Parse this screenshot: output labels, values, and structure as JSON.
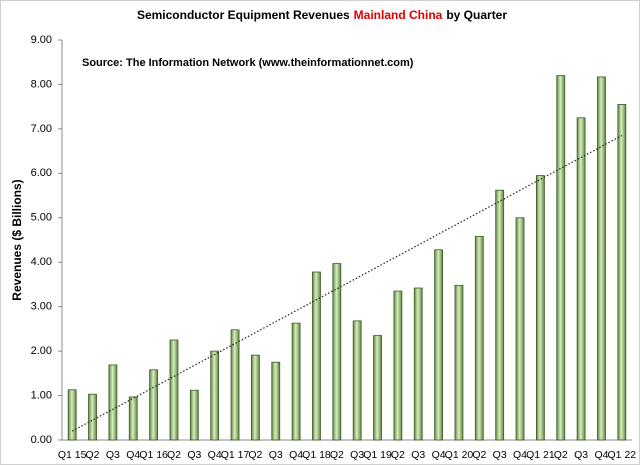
{
  "chart_data": {
    "type": "bar",
    "title_parts": [
      {
        "text": "Semiconductor Equipment Revenues",
        "color": "#000000"
      },
      {
        "text": "Mainland China",
        "color": "#e00000"
      },
      {
        "text": "by Quarter",
        "color": "#000000"
      }
    ],
    "annotation": "Source: The Information Network (www.theinformationnet.com)",
    "y_label": "Revenues ($ Billions)",
    "categories": [
      "Q1 15",
      "Q2",
      "Q3",
      "Q4",
      "Q1 16",
      "Q2",
      "Q3",
      "Q4",
      "Q1 17",
      "Q2",
      "Q3",
      "Q4",
      "Q1 18",
      "Q2",
      "Q3",
      "Q1 19",
      "Q2",
      "Q3",
      "Q4",
      "Q1 20",
      "Q2",
      "Q3",
      "Q4",
      "Q1 21",
      "Q2",
      "Q3",
      "Q4",
      "Q1 22"
    ],
    "values": [
      1.13,
      1.03,
      1.69,
      0.97,
      1.58,
      2.25,
      1.12,
      2.0,
      2.48,
      1.91,
      1.75,
      2.63,
      3.78,
      3.97,
      2.68,
      2.35,
      3.35,
      3.42,
      4.28,
      3.48,
      4.58,
      5.62,
      5.0,
      5.95,
      8.2,
      7.25,
      8.17,
      7.55
    ],
    "color": "#9cbf7a",
    "ylim": [
      0,
      9
    ],
    "yticks": [
      {
        "value": 0,
        "label": "0.00"
      },
      {
        "value": 1,
        "label": "1.00"
      },
      {
        "value": 2,
        "label": "2.00"
      },
      {
        "value": 3,
        "label": "3.00"
      },
      {
        "value": 4,
        "label": "4.00"
      },
      {
        "value": 5,
        "label": "5.00"
      },
      {
        "value": 6,
        "label": "6.00"
      },
      {
        "value": 7,
        "label": "7.00"
      },
      {
        "value": 8,
        "label": "8.00"
      },
      {
        "value": 9,
        "label": "9.00"
      }
    ],
    "trendline": {
      "start": 0.2,
      "end": 6.85
    }
  }
}
